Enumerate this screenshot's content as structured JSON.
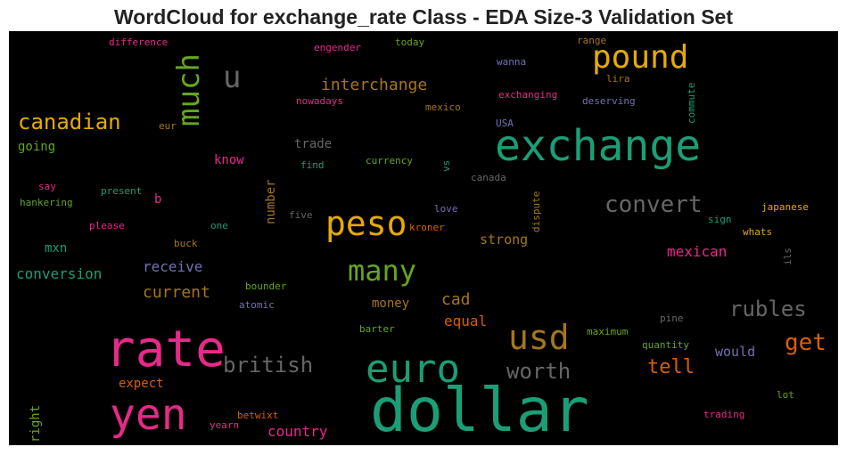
{
  "title": "WordCloud for exchange_rate Class - EDA Size-3 Validation Set",
  "words": [
    {
      "t": "dollar",
      "c": "#1b9e77"
    },
    {
      "t": "exchange",
      "c": "#1b9e77"
    },
    {
      "t": "rate",
      "c": "#e7298a"
    },
    {
      "t": "yen",
      "c": "#e7298a"
    },
    {
      "t": "euro",
      "c": "#1b9e77"
    },
    {
      "t": "usd",
      "c": "#a6761d"
    },
    {
      "t": "pound",
      "c": "#e6ab02"
    },
    {
      "t": "peso",
      "c": "#e6ab02"
    },
    {
      "t": "many",
      "c": "#66a61e"
    },
    {
      "t": "u",
      "c": "#666666"
    },
    {
      "t": "much",
      "c": "#66a61e"
    },
    {
      "t": "canadian",
      "c": "#e6ab02"
    },
    {
      "t": "convert",
      "c": "#666666"
    },
    {
      "t": "british",
      "c": "#666666"
    },
    {
      "t": "worth",
      "c": "#666666"
    },
    {
      "t": "rubles",
      "c": "#666666"
    },
    {
      "t": "get",
      "c": "#d95f02"
    },
    {
      "t": "tell",
      "c": "#d95f02"
    },
    {
      "t": "interchange",
      "c": "#a6761d"
    },
    {
      "t": "current",
      "c": "#a6761d"
    },
    {
      "t": "conversion",
      "c": "#1b9e77"
    },
    {
      "t": "receive",
      "c": "#7570b3"
    },
    {
      "t": "mexican",
      "c": "#e7298a"
    },
    {
      "t": "cad",
      "c": "#a6761d"
    },
    {
      "t": "equal",
      "c": "#d95f02"
    },
    {
      "t": "strong",
      "c": "#a6761d"
    },
    {
      "t": "country",
      "c": "#e7298a"
    },
    {
      "t": "would",
      "c": "#7570b3"
    },
    {
      "t": "going",
      "c": "#66a61e"
    },
    {
      "t": "mxn",
      "c": "#1b9e77"
    },
    {
      "t": "money",
      "c": "#a6761d"
    },
    {
      "t": "trade",
      "c": "#666666"
    },
    {
      "t": "know",
      "c": "#e7298a"
    },
    {
      "t": "expect",
      "c": "#d95f02"
    },
    {
      "t": "number",
      "c": "#a6761d"
    },
    {
      "t": "right",
      "c": "#66a61e"
    },
    {
      "t": "b",
      "c": "#e7298a"
    },
    {
      "t": "difference",
      "c": "#e7298a"
    },
    {
      "t": "today",
      "c": "#66a61e"
    },
    {
      "t": "engender",
      "c": "#e7298a"
    },
    {
      "t": "range",
      "c": "#a6761d"
    },
    {
      "t": "wanna",
      "c": "#7570b3"
    },
    {
      "t": "lira",
      "c": "#a6761d"
    },
    {
      "t": "exchanging",
      "c": "#e7298a"
    },
    {
      "t": "deserving",
      "c": "#7570b3"
    },
    {
      "t": "commute",
      "c": "#1b9e77"
    },
    {
      "t": "nowadays",
      "c": "#e7298a"
    },
    {
      "t": "mexico",
      "c": "#a6761d"
    },
    {
      "t": "USA",
      "c": "#7570b3"
    },
    {
      "t": "eur",
      "c": "#a6761d"
    },
    {
      "t": "find",
      "c": "#1b9e77"
    },
    {
      "t": "currency",
      "c": "#66a61e"
    },
    {
      "t": "vs",
      "c": "#1b9e77"
    },
    {
      "t": "canada",
      "c": "#666666"
    },
    {
      "t": "say",
      "c": "#e7298a"
    },
    {
      "t": "present",
      "c": "#1b9e77"
    },
    {
      "t": "hankering",
      "c": "#66a61e"
    },
    {
      "t": "five",
      "c": "#666666"
    },
    {
      "t": "love",
      "c": "#7570b3"
    },
    {
      "t": "dispute",
      "c": "#a6761d"
    },
    {
      "t": "sign",
      "c": "#1b9e77"
    },
    {
      "t": "japanese",
      "c": "#e6ab02"
    },
    {
      "t": "please",
      "c": "#e7298a"
    },
    {
      "t": "one",
      "c": "#1b9e77"
    },
    {
      "t": "kroner",
      "c": "#d95f02"
    },
    {
      "t": "whats",
      "c": "#e6ab02"
    },
    {
      "t": "buck",
      "c": "#a6761d"
    },
    {
      "t": "ils",
      "c": "#666666"
    },
    {
      "t": "bounder",
      "c": "#66a61e"
    },
    {
      "t": "atomic",
      "c": "#7570b3"
    },
    {
      "t": "pine",
      "c": "#666666"
    },
    {
      "t": "barter",
      "c": "#66a61e"
    },
    {
      "t": "maximum",
      "c": "#66a61e"
    },
    {
      "t": "quantity",
      "c": "#66a61e"
    },
    {
      "t": "lot",
      "c": "#66a61e"
    },
    {
      "t": "betwixt",
      "c": "#d95f02"
    },
    {
      "t": "yearn",
      "c": "#e7298a"
    },
    {
      "t": "trading",
      "c": "#e7298a"
    }
  ]
}
